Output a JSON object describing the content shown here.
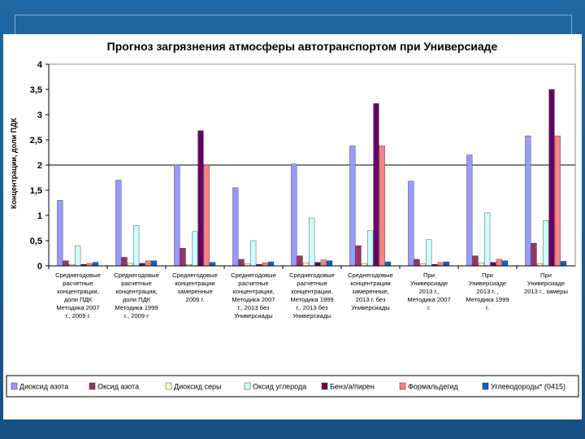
{
  "chart_data": {
    "type": "bar",
    "title": "Прогноз загрязнения атмосферы автотранспортом при Универсиаде",
    "ylabel": "Концентрации, доли ПДК",
    "xlabel": "",
    "ylim": [
      0,
      4
    ],
    "yticks": [
      "0",
      "0,5",
      "1",
      "1,5",
      "2",
      "2,5",
      "3",
      "3,5",
      "4"
    ],
    "reference_line": 2,
    "categories": [
      [
        "Среднегодовые",
        "расчетные",
        "концентрации,",
        "доли ПДК",
        "Методика 2007",
        "г., 2009 г."
      ],
      [
        "Среднегодовые",
        "расчетные",
        "концентрации,",
        "доли ПДК",
        "Методика 1999",
        "г., 2009 г"
      ],
      [
        "Среднегодовые",
        "концентрации",
        "замеренные",
        "2009 г."
      ],
      [
        "Среднегодовые",
        "расчетные",
        "концентрации,",
        "Методика 2007",
        "г., 2013 без",
        "Универсиады"
      ],
      [
        "Среднегодовые",
        "расчетные",
        "концентрации,",
        "Методика 1999",
        "г., 2013 без",
        "Универсиады"
      ],
      [
        "Среднегодовые",
        "концентрации",
        "замеренные,",
        "2013 г. без",
        "Универсиады"
      ],
      [
        "При",
        "Универсиаде",
        "2013 г.,",
        "Методика 2007",
        "г."
      ],
      [
        "При",
        "Универсиаде",
        "2013 г. ,",
        "Методика 1999",
        "г."
      ],
      [
        "При",
        "Универсиаде",
        "2013 г., замеры"
      ]
    ],
    "series": [
      {
        "name": "Диоксид азота",
        "color": "#9999ff",
        "values": [
          1.3,
          1.7,
          2.0,
          1.55,
          2.02,
          2.38,
          1.68,
          2.2,
          2.58
        ]
      },
      {
        "name": "Оксид азота",
        "color": "#993366",
        "values": [
          0.1,
          0.17,
          0.35,
          0.13,
          0.2,
          0.4,
          0.13,
          0.2,
          0.45
        ]
      },
      {
        "name": "Диоксид серы",
        "color": "#ffffcc",
        "values": [
          0.03,
          0.05,
          0.03,
          0.04,
          0.06,
          0.04,
          0.04,
          0.06,
          0.04
        ]
      },
      {
        "name": "Оксид углерода",
        "color": "#ccffff",
        "values": [
          0.4,
          0.8,
          0.68,
          0.5,
          0.95,
          0.7,
          0.52,
          1.05,
          0.9
        ]
      },
      {
        "name": "Бенз/а/пирен",
        "color": "#660066",
        "values": [
          0.03,
          0.05,
          2.68,
          0.03,
          0.07,
          3.22,
          0.03,
          0.07,
          3.5
        ]
      },
      {
        "name": "Формальдегид",
        "color": "#ff8080",
        "values": [
          0.05,
          0.1,
          2.0,
          0.06,
          0.12,
          2.38,
          0.07,
          0.13,
          2.58
        ]
      },
      {
        "name": "Углеводороды* (0415)",
        "color": "#0066cc",
        "values": [
          0.07,
          0.1,
          0.07,
          0.08,
          0.1,
          0.08,
          0.08,
          0.1,
          0.09
        ]
      }
    ],
    "legend": "bottom"
  }
}
